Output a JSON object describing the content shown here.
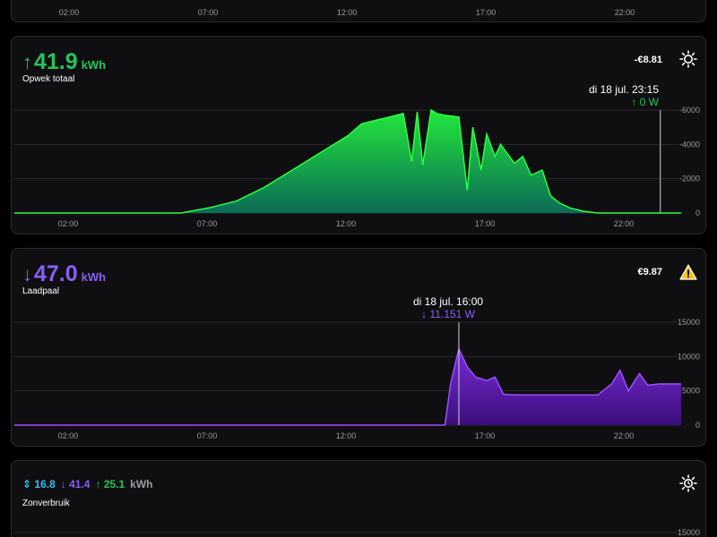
{
  "colors": {
    "green": "#22c55e",
    "purple": "#8b5cf6",
    "blue": "#38bdf8",
    "bg": "#0f0f11"
  },
  "x_ticks": [
    "02:00",
    "07:00",
    "12:00",
    "17:00",
    "22:00"
  ],
  "top_card": {
    "x_ticks": [
      "02:00",
      "07:00",
      "12:00",
      "17:00",
      "22:00"
    ]
  },
  "opwek": {
    "value": "41.9",
    "unit": "kWh",
    "label": "Opwek totaal",
    "cost": "-€8.81",
    "icon": "sun-icon",
    "tooltip_time": "di 18 jul. 23:15",
    "tooltip_value": "0 W",
    "chart_data": {
      "type": "area",
      "title": "",
      "xlabel": "",
      "ylabel": "",
      "x_ticks": [
        "02:00",
        "07:00",
        "12:00",
        "17:00",
        "22:00"
      ],
      "y_ticks": [
        "-6000",
        "-4000",
        "-2000",
        "0"
      ],
      "ylim": [
        0,
        6000
      ],
      "x_hours": [
        0,
        6,
        7,
        8,
        9,
        10,
        11,
        12,
        12.5,
        13,
        13.5,
        14,
        14.3,
        14.5,
        14.7,
        15,
        15.2,
        15.5,
        16,
        16.3,
        16.5,
        16.8,
        17,
        17.3,
        17.5,
        18,
        18.3,
        18.6,
        19,
        19.3,
        19.6,
        20,
        20.5,
        21,
        22,
        24
      ],
      "values": [
        0,
        0,
        300,
        700,
        1500,
        2500,
        3500,
        4500,
        5200,
        5400,
        5600,
        5800,
        3000,
        5900,
        2800,
        6000,
        5800,
        5700,
        5600,
        1300,
        5000,
        2500,
        4600,
        3300,
        4000,
        2900,
        3300,
        2200,
        2500,
        1000,
        600,
        300,
        100,
        0,
        0,
        0
      ]
    }
  },
  "laadpaal": {
    "value": "47.0",
    "unit": "kWh",
    "label": "Laadpaal",
    "cost": "€9.87",
    "icon": "warning-icon",
    "tooltip_time": "di 18 jul. 16:00",
    "tooltip_value": "11.151 W",
    "chart_data": {
      "type": "area",
      "title": "",
      "xlabel": "",
      "ylabel": "",
      "x_ticks": [
        "02:00",
        "07:00",
        "12:00",
        "17:00",
        "22:00"
      ],
      "y_ticks": [
        "15000",
        "10000",
        "5000",
        "0"
      ],
      "ylim": [
        0,
        15000
      ],
      "x_hours": [
        0,
        15.5,
        15.7,
        16,
        16.3,
        16.6,
        17,
        17.3,
        17.6,
        18,
        18.3,
        18.6,
        19,
        20,
        21,
        21.5,
        21.8,
        22.1,
        22.5,
        22.8,
        23.2,
        24
      ],
      "values": [
        0,
        0,
        6000,
        11151,
        8500,
        7000,
        6500,
        7000,
        4500,
        4400,
        4400,
        4400,
        4400,
        4400,
        4400,
        6000,
        8000,
        5000,
        7500,
        5800,
        6000,
        6000
      ]
    }
  },
  "zonverbruik": {
    "blue_value": "16.8",
    "purple_value": "41.4",
    "green_value": "25.1",
    "unit": "kWh",
    "label": "Zonverbruik",
    "icon": "sun-clock-icon",
    "y_top": "15000"
  }
}
